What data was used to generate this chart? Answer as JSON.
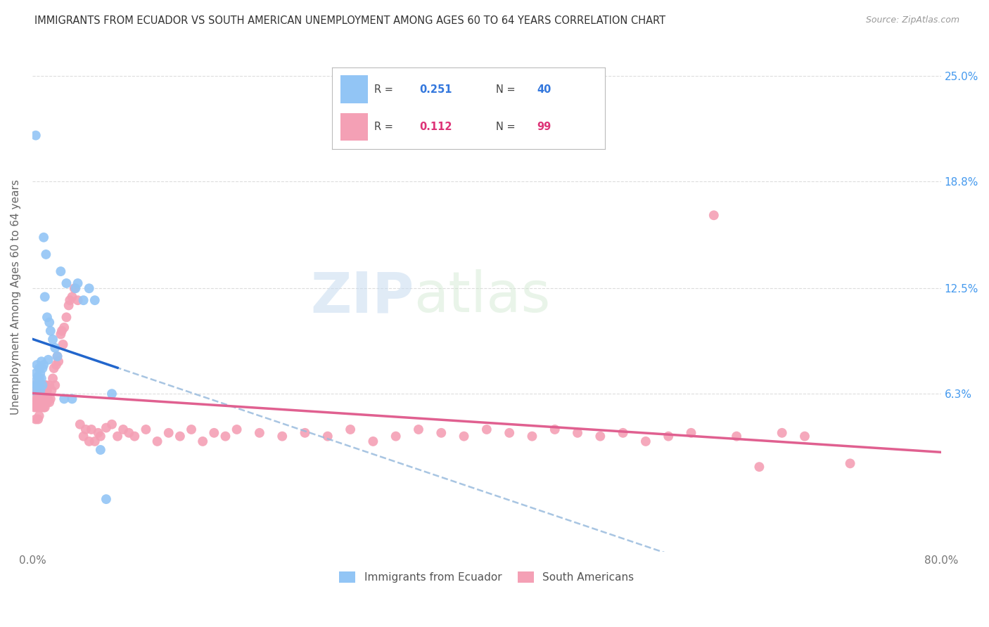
{
  "title": "IMMIGRANTS FROM ECUADOR VS SOUTH AMERICAN UNEMPLOYMENT AMONG AGES 60 TO 64 YEARS CORRELATION CHART",
  "source": "Source: ZipAtlas.com",
  "ylabel": "Unemployment Among Ages 60 to 64 years",
  "ytick_labels": [
    "6.3%",
    "12.5%",
    "18.8%",
    "25.0%"
  ],
  "ytick_values": [
    0.063,
    0.125,
    0.188,
    0.25
  ],
  "xlim": [
    0.0,
    0.8
  ],
  "ylim": [
    -0.03,
    0.27
  ],
  "r_ecuador": 0.251,
  "n_ecuador": 40,
  "r_southam": 0.112,
  "n_southam": 99,
  "color_ecuador": "#92C5F5",
  "color_southam": "#F4A0B5",
  "line_color_ecuador": "#2266CC",
  "line_color_southam": "#E06090",
  "dashed_line_color": "#99BBDD",
  "background_color": "#FFFFFF",
  "grid_color": "#DDDDDD",
  "title_color": "#333333",
  "right_tick_color": "#4499EE",
  "legend_r1_val_color": "#3377DD",
  "legend_r1_n_color": "#3377DD",
  "legend_r2_val_color": "#DD3377",
  "legend_r2_n_color": "#DD3377",
  "ecuador_x": [
    0.001,
    0.002,
    0.003,
    0.003,
    0.004,
    0.004,
    0.005,
    0.005,
    0.006,
    0.006,
    0.006,
    0.007,
    0.007,
    0.008,
    0.008,
    0.009,
    0.009,
    0.01,
    0.01,
    0.011,
    0.012,
    0.013,
    0.014,
    0.015,
    0.016,
    0.018,
    0.02,
    0.022,
    0.025,
    0.028,
    0.03,
    0.035,
    0.038,
    0.04,
    0.045,
    0.05,
    0.055,
    0.06,
    0.065,
    0.07
  ],
  "ecuador_y": [
    0.065,
    0.07,
    0.075,
    0.215,
    0.08,
    0.068,
    0.068,
    0.073,
    0.072,
    0.068,
    0.078,
    0.065,
    0.075,
    0.072,
    0.082,
    0.068,
    0.078,
    0.08,
    0.155,
    0.12,
    0.145,
    0.108,
    0.083,
    0.105,
    0.1,
    0.095,
    0.09,
    0.085,
    0.135,
    0.06,
    0.128,
    0.06,
    0.125,
    0.128,
    0.118,
    0.125,
    0.118,
    0.03,
    0.001,
    0.063
  ],
  "southam_x": [
    0.001,
    0.001,
    0.002,
    0.002,
    0.003,
    0.003,
    0.004,
    0.004,
    0.005,
    0.005,
    0.005,
    0.006,
    0.006,
    0.006,
    0.007,
    0.007,
    0.008,
    0.008,
    0.009,
    0.009,
    0.01,
    0.01,
    0.01,
    0.011,
    0.011,
    0.012,
    0.012,
    0.013,
    0.013,
    0.014,
    0.015,
    0.015,
    0.016,
    0.017,
    0.018,
    0.019,
    0.02,
    0.021,
    0.022,
    0.023,
    0.025,
    0.026,
    0.027,
    0.028,
    0.03,
    0.032,
    0.033,
    0.035,
    0.037,
    0.04,
    0.042,
    0.045,
    0.047,
    0.05,
    0.052,
    0.055,
    0.058,
    0.06,
    0.065,
    0.07,
    0.075,
    0.08,
    0.085,
    0.09,
    0.1,
    0.11,
    0.12,
    0.13,
    0.14,
    0.15,
    0.16,
    0.17,
    0.18,
    0.2,
    0.22,
    0.24,
    0.26,
    0.28,
    0.3,
    0.32,
    0.34,
    0.36,
    0.38,
    0.4,
    0.42,
    0.44,
    0.46,
    0.48,
    0.5,
    0.52,
    0.54,
    0.56,
    0.58,
    0.6,
    0.62,
    0.64,
    0.66,
    0.68,
    0.72
  ],
  "southam_y": [
    0.058,
    0.065,
    0.055,
    0.068,
    0.06,
    0.048,
    0.065,
    0.055,
    0.058,
    0.048,
    0.062,
    0.06,
    0.05,
    0.068,
    0.058,
    0.065,
    0.06,
    0.055,
    0.068,
    0.062,
    0.058,
    0.055,
    0.065,
    0.068,
    0.055,
    0.06,
    0.068,
    0.058,
    0.065,
    0.06,
    0.058,
    0.068,
    0.06,
    0.065,
    0.072,
    0.078,
    0.068,
    0.08,
    0.085,
    0.082,
    0.098,
    0.1,
    0.092,
    0.102,
    0.108,
    0.115,
    0.118,
    0.12,
    0.125,
    0.118,
    0.045,
    0.038,
    0.042,
    0.035,
    0.042,
    0.035,
    0.04,
    0.038,
    0.043,
    0.045,
    0.038,
    0.042,
    0.04,
    0.038,
    0.042,
    0.035,
    0.04,
    0.038,
    0.042,
    0.035,
    0.04,
    0.038,
    0.042,
    0.04,
    0.038,
    0.04,
    0.038,
    0.042,
    0.035,
    0.038,
    0.042,
    0.04,
    0.038,
    0.042,
    0.04,
    0.038,
    0.042,
    0.04,
    0.038,
    0.04,
    0.035,
    0.038,
    0.04,
    0.168,
    0.038,
    0.02,
    0.04,
    0.038,
    0.022
  ]
}
